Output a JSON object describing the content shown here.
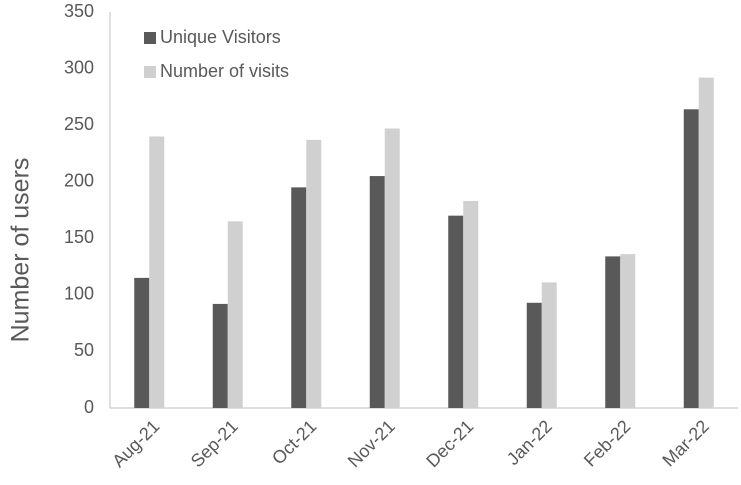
{
  "chart_data": {
    "type": "bar",
    "y_label": "Number of users",
    "categories": [
      "Aug-21",
      "Sep-21",
      "Oct-21",
      "Nov-21",
      "Dec-21",
      "Jan-22",
      "Feb-22",
      "Mar-22"
    ],
    "series": [
      {
        "name": "Unique Visitors",
        "color": "#595959",
        "values": [
          115,
          92,
          195,
          205,
          170,
          93,
          134,
          264
        ]
      },
      {
        "name": "Number of visits",
        "color": "#d0d0d0",
        "values": [
          240,
          165,
          237,
          247,
          183,
          111,
          136,
          292
        ]
      }
    ],
    "ylim": [
      0,
      350
    ],
    "yticks": [
      0,
      50,
      100,
      150,
      200,
      250,
      300,
      350
    ],
    "grid": false,
    "legend": "top-left"
  }
}
